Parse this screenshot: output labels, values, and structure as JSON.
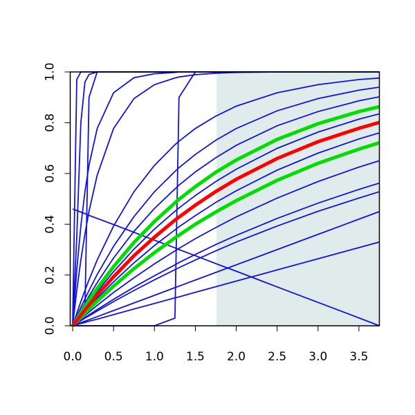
{
  "chart_data": {
    "type": "line",
    "x": [
      0,
      0.05,
      0.1,
      0.15,
      0.2,
      0.3,
      0.5,
      0.75,
      1,
      1.25,
      1.3,
      1.5,
      1.75,
      2,
      2.5,
      3,
      3.5,
      3.75
    ],
    "xlim": [
      -0.03,
      3.75
    ],
    "ylim": [
      0,
      1
    ],
    "xticks": [
      {
        "value": 0,
        "label": "0.0"
      },
      0.5,
      {
        "value": 1,
        "label": "1.0"
      },
      1.5,
      {
        "value": 2,
        "label": "2.0"
      },
      2.5,
      {
        "value": 3,
        "label": "3.0"
      },
      3.5
    ],
    "yticks": [
      {
        "value": 0,
        "label": "0.0"
      },
      0.2,
      0.4,
      0.6,
      0.8,
      {
        "value": 1,
        "label": "1.0"
      }
    ],
    "shaded_x": [
      1.76,
      3.75
    ],
    "shade_color": "#e0ecec",
    "series": [
      {
        "color": "#1010e0",
        "values": [
          0,
          0.97,
          1,
          1,
          1,
          1,
          1,
          1,
          1,
          1,
          1,
          1,
          1,
          1,
          1,
          1,
          1,
          1
        ]
      },
      {
        "color": "#1010e0",
        "values": [
          0,
          0.35,
          0.8,
          0.96,
          0.99,
          1,
          1,
          1,
          1,
          1,
          1,
          1,
          1,
          1,
          1,
          1,
          1,
          1
        ]
      },
      {
        "color": "#1010e0",
        "values": [
          0,
          0.02,
          0.04,
          0.06,
          0.9,
          1,
          1,
          1,
          1,
          1,
          1,
          1,
          1,
          1,
          1,
          1,
          1,
          1
        ]
      },
      {
        "color": "#1010e0",
        "values": [
          0,
          0.221,
          0.393,
          0.528,
          0.632,
          0.777,
          0.918,
          0.977,
          0.993,
          0.998,
          1,
          1,
          1,
          1,
          1,
          1,
          1,
          1
        ]
      },
      {
        "color": "#1010e0",
        "values": [
          0,
          0.139,
          0.259,
          0.362,
          0.451,
          0.593,
          0.777,
          0.895,
          0.95,
          0.976,
          0.98,
          0.989,
          0.995,
          0.998,
          1,
          1,
          1,
          1
        ]
      },
      {
        "color": "#1010e0",
        "values": [
          0,
          0,
          0,
          0,
          0,
          0,
          0,
          0,
          0,
          0.03,
          0.9,
          1,
          1,
          1,
          1,
          1,
          1,
          1
        ]
      },
      {
        "color": "#1010e0",
        "values": [
          0.46,
          0.454,
          0.448,
          0.442,
          0.435,
          0.423,
          0.399,
          0.368,
          0.337,
          0.307,
          0.3,
          0.276,
          0.245,
          0.215,
          0.153,
          0.092,
          0.031,
          0
        ]
      },
      {
        "color": "#1010e0",
        "values": [
          0,
          0.004,
          0.009,
          0.013,
          0.018,
          0.026,
          0.044,
          0.066,
          0.088,
          0.11,
          0.114,
          0.132,
          0.154,
          0.176,
          0.22,
          0.264,
          0.308,
          0.33
        ]
      },
      {
        "color": "#1010e0",
        "values": [
          0,
          0.006,
          0.012,
          0.018,
          0.024,
          0.036,
          0.06,
          0.09,
          0.12,
          0.15,
          0.156,
          0.18,
          0.21,
          0.24,
          0.3,
          0.36,
          0.42,
          0.45
        ]
      },
      {
        "color": "#1010e0",
        "values": [
          0,
          0.049,
          0.095,
          0.139,
          0.181,
          0.259,
          0.393,
          0.528,
          0.632,
          0.713,
          0.727,
          0.777,
          0.826,
          0.865,
          0.918,
          0.95,
          0.97,
          0.976
        ]
      },
      {
        "color": "#1010e0",
        "values": [
          0,
          0.037,
          0.072,
          0.106,
          0.139,
          0.202,
          0.313,
          0.43,
          0.528,
          0.608,
          0.623,
          0.675,
          0.731,
          0.777,
          0.847,
          0.895,
          0.928,
          0.94
        ]
      },
      {
        "color": "#1010e0",
        "values": [
          0,
          0.031,
          0.06,
          0.089,
          0.117,
          0.17,
          0.267,
          0.372,
          0.462,
          0.539,
          0.554,
          0.606,
          0.662,
          0.711,
          0.788,
          0.844,
          0.886,
          0.902
        ]
      },
      {
        "color": "#1010e0",
        "values": [
          0,
          0.024,
          0.047,
          0.07,
          0.092,
          0.134,
          0.213,
          0.302,
          0.381,
          0.451,
          0.464,
          0.513,
          0.568,
          0.617,
          0.699,
          0.763,
          0.814,
          0.835
        ]
      },
      {
        "color": "#1010e0",
        "values": [
          0,
          0.019,
          0.037,
          0.055,
          0.073,
          0.108,
          0.173,
          0.248,
          0.316,
          0.378,
          0.39,
          0.434,
          0.486,
          0.532,
          0.613,
          0.68,
          0.736,
          0.76
        ]
      },
      {
        "color": "#1010e0",
        "values": [
          0,
          0.014,
          0.028,
          0.041,
          0.054,
          0.08,
          0.131,
          0.189,
          0.244,
          0.295,
          0.305,
          0.343,
          0.387,
          0.429,
          0.503,
          0.568,
          0.625,
          0.65
        ]
      },
      {
        "color": "#1010e0",
        "values": [
          0,
          0.011,
          0.022,
          0.033,
          0.043,
          0.064,
          0.104,
          0.152,
          0.197,
          0.24,
          0.249,
          0.281,
          0.32,
          0.356,
          0.423,
          0.483,
          0.537,
          0.562
        ]
      },
      {
        "color": "#1010e0",
        "values": [
          0,
          0.01,
          0.02,
          0.03,
          0.039,
          0.058,
          0.095,
          0.139,
          0.181,
          0.221,
          0.229,
          0.259,
          0.295,
          0.33,
          0.393,
          0.451,
          0.503,
          0.528
        ]
      },
      {
        "color": "#00dd00",
        "values": [
          0,
          0.026,
          0.052,
          0.076,
          0.101,
          0.147,
          0.233,
          0.328,
          0.411,
          0.484,
          0.498,
          0.548,
          0.605,
          0.653,
          0.734,
          0.796,
          0.844,
          0.863
        ]
      },
      {
        "color": "#00dd00",
        "values": [
          0,
          0.017,
          0.033,
          0.05,
          0.066,
          0.097,
          0.156,
          0.225,
          0.288,
          0.346,
          0.357,
          0.4,
          0.448,
          0.493,
          0.573,
          0.64,
          0.696,
          0.721
        ]
      },
      {
        "color": "#ff0000",
        "values": [
          0,
          0.021,
          0.042,
          0.062,
          0.082,
          0.121,
          0.193,
          0.276,
          0.349,
          0.416,
          0.428,
          0.475,
          0.529,
          0.577,
          0.659,
          0.725,
          0.778,
          0.801
        ]
      }
    ]
  }
}
